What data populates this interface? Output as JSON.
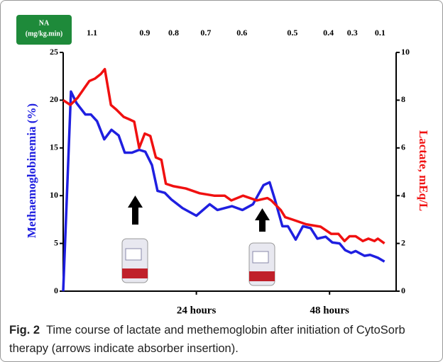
{
  "chart_data": {
    "type": "line",
    "na_header": "NA",
    "na_unit": "(mg/kg.min)",
    "na_annotations": [
      {
        "x": 5.2,
        "value": 1.1
      },
      {
        "x": 14.7,
        "value": 0.9
      },
      {
        "x": 19.9,
        "value": 0.8
      },
      {
        "x": 25.7,
        "value": 0.7
      },
      {
        "x": 32.2,
        "value": 0.6
      },
      {
        "x": 41.3,
        "value": 0.5
      },
      {
        "x": 47.8,
        "value": 0.4
      },
      {
        "x": 52.1,
        "value": 0.3
      },
      {
        "x": 57.1,
        "value": 0.1
      }
    ],
    "ylabel": "Methaemoglobinemia (%)",
    "y2label": "Lactate, mEq/L",
    "xlim": [
      0,
      60
    ],
    "xticks": [
      {
        "value": 24,
        "label": "24 hours"
      },
      {
        "value": 48,
        "label": "48 hours"
      }
    ],
    "ylim": [
      0,
      25
    ],
    "yticks": [
      0,
      5,
      10,
      15,
      20,
      25
    ],
    "y2lim": [
      0,
      10
    ],
    "y2ticks": [
      0,
      2,
      4,
      6,
      8,
      10
    ],
    "grid": false,
    "series": [
      {
        "color": "#1f1fe0",
        "axis": "y",
        "x": [
          0,
          1.4,
          2.4,
          4.0,
          5.0,
          6.1,
          7.4,
          8.7,
          10.0,
          11.1,
          12.4,
          13.7,
          14.8,
          16.0,
          17.0,
          18.3,
          19.5,
          21.5,
          24.0,
          26.4,
          27.8,
          30.4,
          32.3,
          34.2,
          36.1,
          37.2,
          38.2,
          39.5,
          40.5,
          41.9,
          43.2,
          44.6,
          45.8,
          47.3,
          48.5,
          49.8,
          50.8,
          51.9,
          52.7,
          54.3,
          55.3,
          56.7,
          57.9
        ],
        "values": [
          0,
          20.9,
          19.7,
          18.5,
          18.5,
          17.8,
          15.9,
          16.9,
          16.3,
          14.5,
          14.5,
          14.8,
          14.6,
          13.2,
          10.5,
          10.3,
          9.6,
          8.7,
          7.9,
          9.1,
          8.5,
          8.9,
          8.5,
          9.1,
          11.1,
          11.4,
          9.5,
          6.8,
          6.8,
          5.4,
          6.8,
          6.6,
          5.5,
          5.7,
          5.1,
          5.0,
          4.3,
          4.0,
          4.2,
          3.7,
          3.8,
          3.5,
          3.1
        ]
      },
      {
        "color": "#f01010",
        "axis": "y2",
        "x": [
          0,
          1.3,
          2.6,
          3.8,
          4.7,
          5.7,
          6.8,
          7.5,
          8.6,
          9.6,
          10.9,
          11.9,
          12.8,
          13.7,
          14.7,
          15.7,
          16.7,
          17.7,
          18.5,
          19.8,
          22.1,
          24.6,
          27.2,
          29.1,
          30.3,
          32.4,
          34.9,
          36.8,
          37.5,
          39.2,
          40.0,
          41.3,
          43.8,
          46.4,
          48.3,
          49.6,
          50.7,
          51.6,
          52.7,
          54.0,
          55.0,
          56.1,
          56.7,
          57.9
        ],
        "values": [
          8.0,
          7.8,
          8.1,
          8.5,
          8.8,
          8.9,
          9.1,
          9.3,
          7.8,
          7.6,
          7.3,
          7.2,
          7.1,
          6.0,
          6.6,
          6.5,
          5.6,
          5.5,
          4.5,
          4.4,
          4.3,
          4.1,
          4.0,
          4.0,
          3.8,
          4.0,
          3.8,
          3.9,
          3.8,
          3.4,
          3.1,
          3.0,
          2.8,
          2.7,
          2.4,
          2.4,
          2.1,
          2.3,
          2.3,
          2.1,
          2.2,
          2.1,
          2.2,
          2.0
        ]
      }
    ],
    "caption": {
      "label": "Fig. 2",
      "text": "Time course of lactate and methemoglobin after initiation of CytoSorb therapy (arrows indicate absorber insertion)."
    }
  }
}
